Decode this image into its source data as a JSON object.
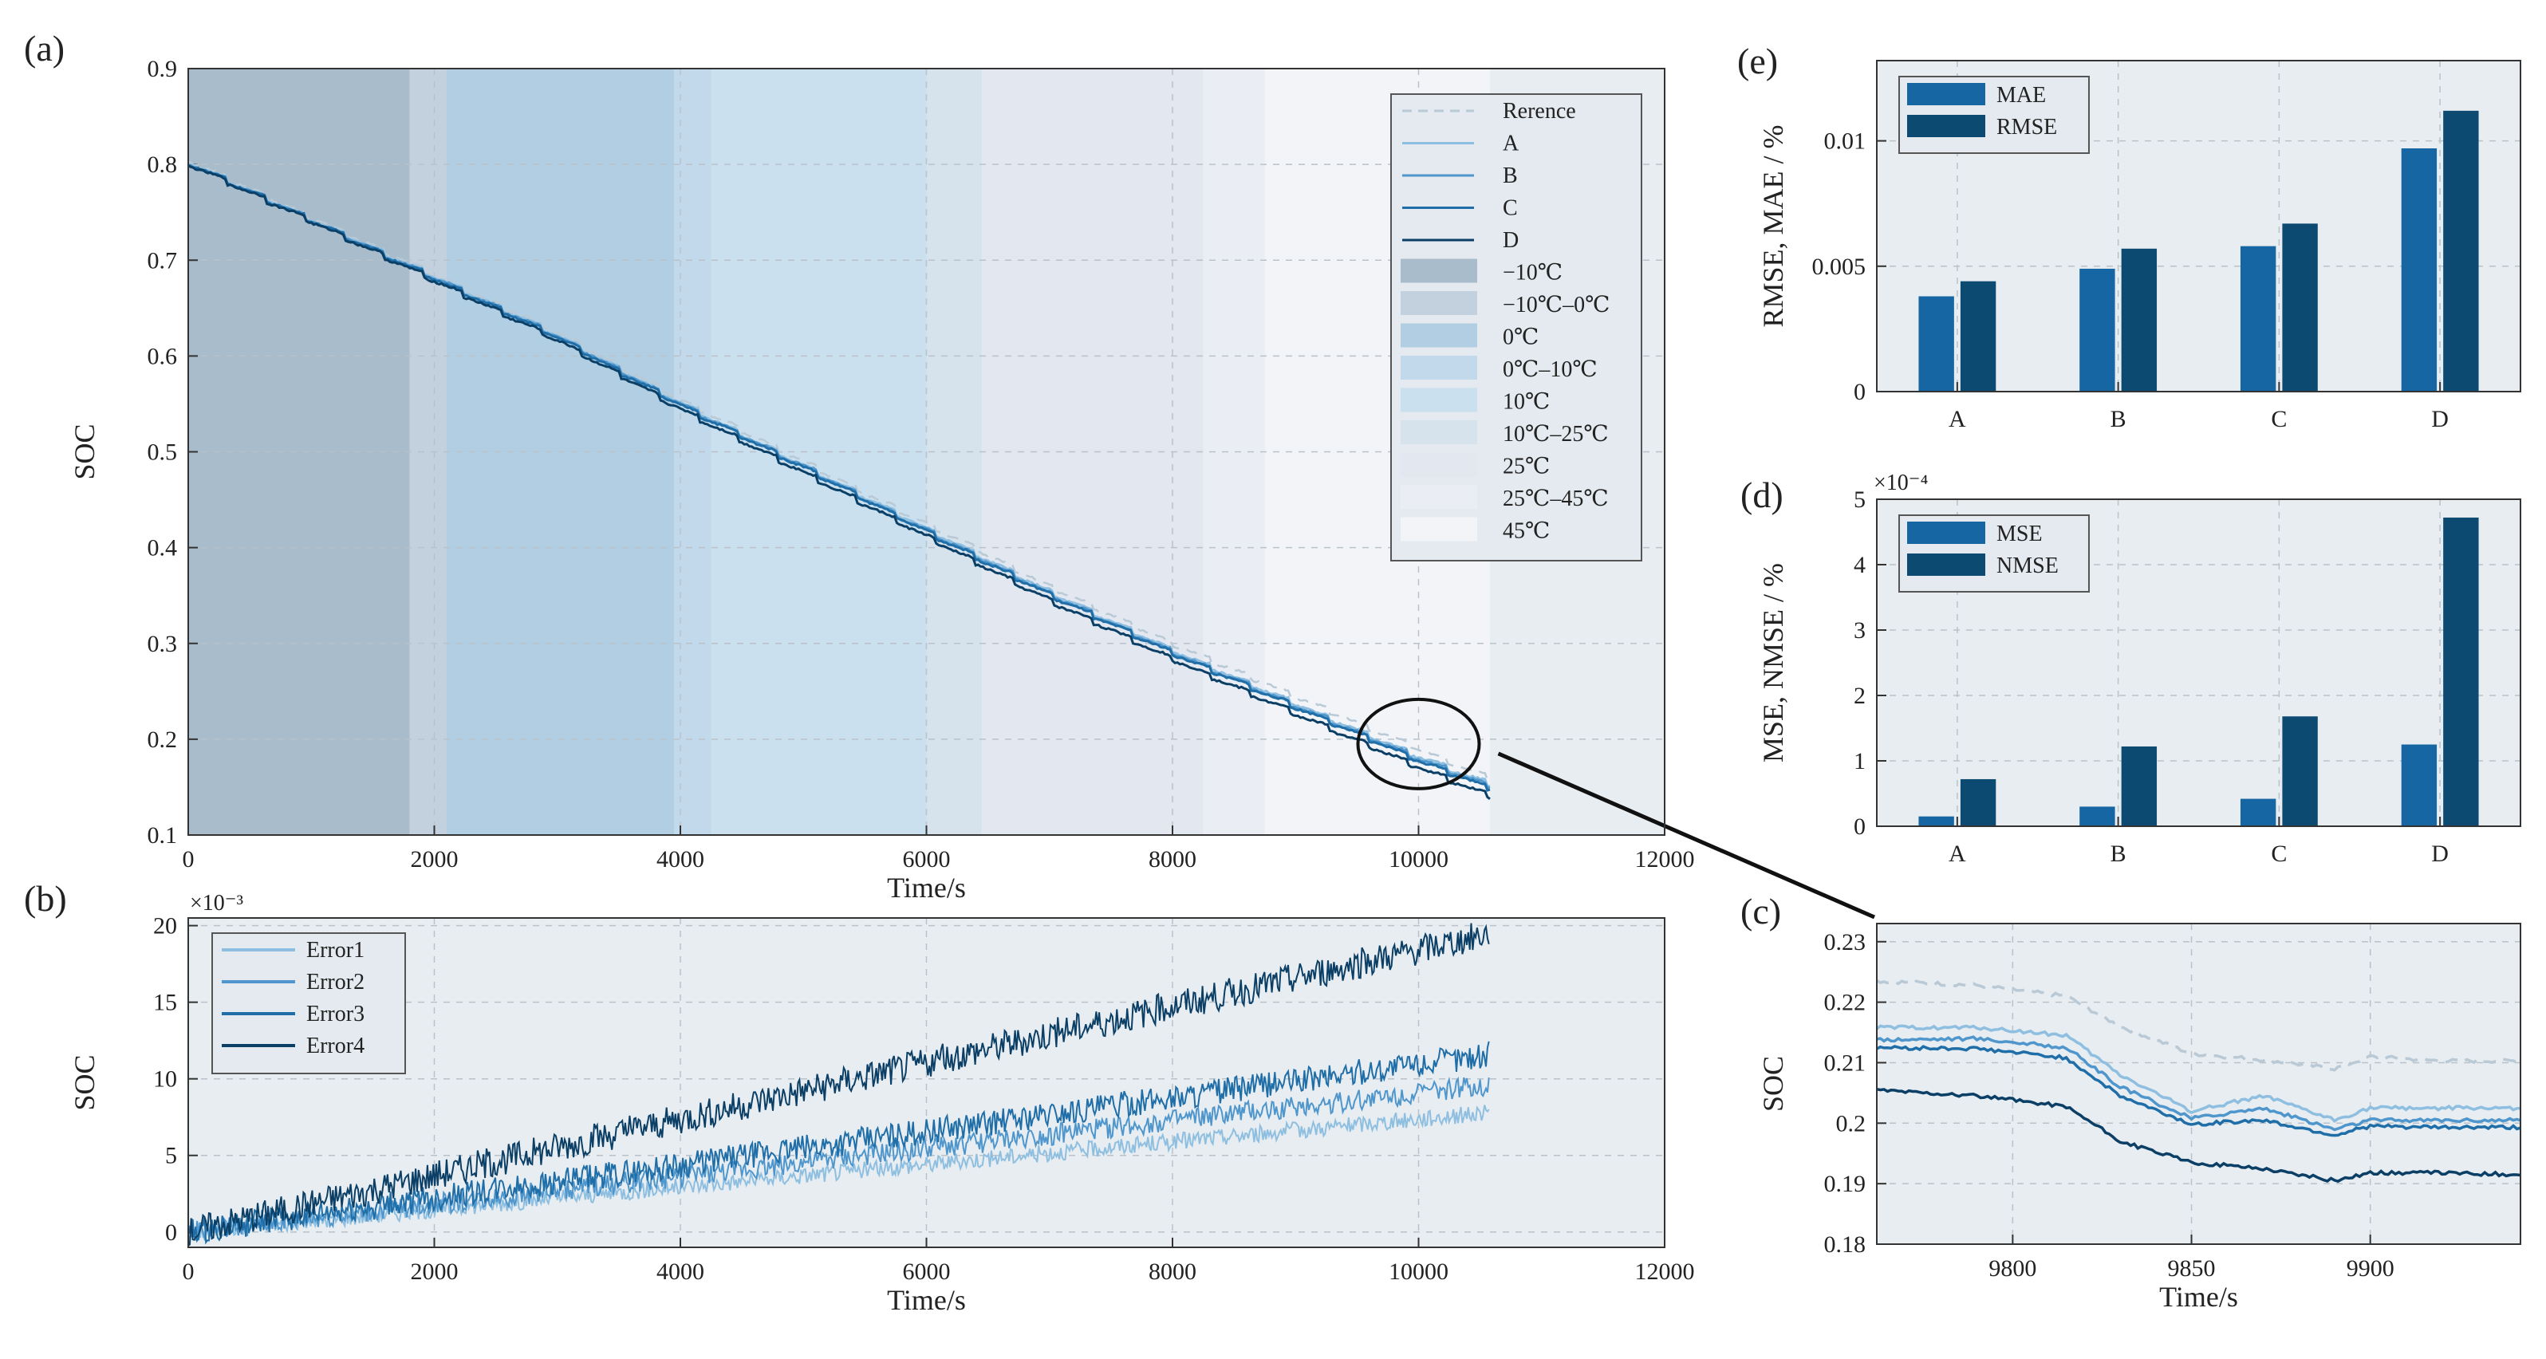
{
  "chart_data": [
    {
      "id": "a",
      "panel_label": "(a)",
      "type": "line",
      "xlabel": "Time/s",
      "ylabel": "SOC",
      "xlim": [
        0,
        12000
      ],
      "ylim": [
        0.1,
        0.9
      ],
      "xticks": [
        "0",
        "2000",
        "4000",
        "6000",
        "8000",
        "10000",
        "12000"
      ],
      "yticks": [
        "0.1",
        "0.2",
        "0.3",
        "0.4",
        "0.5",
        "0.6",
        "0.7",
        "0.8",
        "0.9"
      ],
      "series": [
        {
          "name": "Rerence",
          "style": "dashed",
          "color": "#b9c9d6",
          "x": [
            0,
            1000,
            2000,
            3000,
            4000,
            5000,
            6000,
            7000,
            8000,
            9000,
            10000,
            10580
          ],
          "y": [
            0.805,
            0.745,
            0.685,
            0.625,
            0.555,
            0.49,
            0.425,
            0.36,
            0.3,
            0.245,
            0.19,
            0.16
          ]
        },
        {
          "name": "A",
          "color": "#8fbfe0",
          "x": [
            0,
            1000,
            2000,
            3000,
            4000,
            5000,
            6000,
            7000,
            8000,
            9000,
            10000,
            10580
          ],
          "y": [
            0.803,
            0.743,
            0.683,
            0.622,
            0.551,
            0.486,
            0.42,
            0.354,
            0.293,
            0.237,
            0.182,
            0.153
          ]
        },
        {
          "name": "B",
          "color": "#4f96cc",
          "x": [
            0,
            1000,
            2000,
            3000,
            4000,
            5000,
            6000,
            7000,
            8000,
            9000,
            10000,
            10580
          ],
          "y": [
            0.802,
            0.742,
            0.682,
            0.621,
            0.55,
            0.485,
            0.418,
            0.352,
            0.291,
            0.235,
            0.18,
            0.151
          ]
        },
        {
          "name": "C",
          "color": "#1f6ea8",
          "x": [
            0,
            1000,
            2000,
            3000,
            4000,
            5000,
            6000,
            7000,
            8000,
            9000,
            10000,
            10580
          ],
          "y": [
            0.802,
            0.742,
            0.681,
            0.62,
            0.549,
            0.484,
            0.417,
            0.351,
            0.29,
            0.234,
            0.178,
            0.149
          ]
        },
        {
          "name": "D",
          "color": "#0b3f66",
          "x": [
            0,
            1000,
            2000,
            3000,
            4000,
            5000,
            6000,
            7000,
            8000,
            9000,
            10000,
            10580
          ],
          "y": [
            0.801,
            0.741,
            0.679,
            0.617,
            0.545,
            0.479,
            0.412,
            0.345,
            0.284,
            0.227,
            0.171,
            0.141
          ]
        }
      ],
      "temperature_bands": [
        {
          "label": "−10℃",
          "x0": 0,
          "x1": 1800,
          "color": "#a9bccb"
        },
        {
          "label": "−10℃–0℃",
          "x0": 1800,
          "x1": 2100,
          "color": "#c2d1dd"
        },
        {
          "label": "0℃",
          "x0": 2100,
          "x1": 3950,
          "color": "#b1cee2"
        },
        {
          "label": "0℃–10℃",
          "x0": 3950,
          "x1": 4250,
          "color": "#c1d9ea"
        },
        {
          "label": "10℃",
          "x0": 4250,
          "x1": 6000,
          "color": "#cbe0ee"
        },
        {
          "label": "10℃–25℃",
          "x0": 6000,
          "x1": 6450,
          "color": "#d6e3ed"
        },
        {
          "label": "25℃",
          "x0": 6450,
          "x1": 8250,
          "color": "#e3e7f0"
        },
        {
          "label": "25℃–45℃",
          "x0": 8250,
          "x1": 8750,
          "color": "#eaedf3"
        },
        {
          "label": "45℃",
          "x0": 8750,
          "x1": 10580,
          "color": "#f2f4f7"
        }
      ],
      "legend_position": "top-right"
    },
    {
      "id": "b",
      "panel_label": "(b)",
      "type": "line",
      "xlabel": "Time/s",
      "ylabel": "SOC",
      "exponent": "×10⁻³",
      "xlim": [
        0,
        12000
      ],
      "ylim": [
        -1,
        20.5
      ],
      "xticks": [
        "0",
        "2000",
        "4000",
        "6000",
        "8000",
        "10000",
        "12000"
      ],
      "yticks": [
        "0",
        "5",
        "10",
        "15",
        "20"
      ],
      "series": [
        {
          "name": "Error1",
          "color": "#8fbfe0",
          "x": [
            0,
            10580
          ],
          "y": [
            0,
            7.8
          ]
        },
        {
          "name": "Error2",
          "color": "#4f96cc",
          "x": [
            0,
            10580
          ],
          "y": [
            0,
            9.6
          ]
        },
        {
          "name": "Error3",
          "color": "#1f6ea8",
          "x": [
            0,
            10580
          ],
          "y": [
            0,
            11.6
          ]
        },
        {
          "name": "Error4",
          "color": "#0b3f66",
          "x": [
            0,
            10580
          ],
          "y": [
            0,
            19.5
          ]
        }
      ],
      "legend_position": "top-left"
    },
    {
      "id": "c",
      "panel_label": "(c)",
      "type": "line",
      "xlabel": "Time/s",
      "ylabel": "SOC",
      "xlim": [
        9762,
        9942
      ],
      "ylim": [
        0.18,
        0.233
      ],
      "xticks": [
        "9800",
        "9850",
        "9900"
      ],
      "yticks": [
        "0.18",
        "0.19",
        "0.2",
        "0.21",
        "0.22",
        "0.23"
      ],
      "series": [
        {
          "name": "Rerence",
          "style": "dashed",
          "color": "#b9c9d6",
          "x": [
            9762,
            9790,
            9815,
            9830,
            9850,
            9870,
            9890,
            9900,
            9920,
            9942
          ],
          "y": [
            0.2235,
            0.2228,
            0.221,
            0.216,
            0.2115,
            0.2105,
            0.209,
            0.211,
            0.2103,
            0.2103
          ]
        },
        {
          "name": "A",
          "color": "#8fbfe0",
          "x": [
            9762,
            9790,
            9815,
            9830,
            9850,
            9870,
            9890,
            9900,
            9920,
            9942
          ],
          "y": [
            0.2158,
            0.2158,
            0.2145,
            0.208,
            0.202,
            0.2045,
            0.2005,
            0.2025,
            0.2025,
            0.2025
          ]
        },
        {
          "name": "B",
          "color": "#4f96cc",
          "x": [
            9762,
            9790,
            9815,
            9830,
            9850,
            9870,
            9890,
            9900,
            9920,
            9942
          ],
          "y": [
            0.2138,
            0.214,
            0.2125,
            0.206,
            0.2008,
            0.2025,
            0.199,
            0.2005,
            0.2005,
            0.2005
          ]
        },
        {
          "name": "C",
          "color": "#1f6ea8",
          "x": [
            9762,
            9790,
            9815,
            9830,
            9850,
            9870,
            9890,
            9900,
            9920,
            9942
          ],
          "y": [
            0.2125,
            0.2123,
            0.2108,
            0.2045,
            0.1998,
            0.2005,
            0.198,
            0.1995,
            0.1993,
            0.1993
          ]
        },
        {
          "name": "D",
          "color": "#0b3f66",
          "x": [
            9762,
            9790,
            9815,
            9830,
            9850,
            9870,
            9890,
            9900,
            9920,
            9942
          ],
          "y": [
            0.2055,
            0.2045,
            0.2028,
            0.197,
            0.1935,
            0.1925,
            0.1905,
            0.1918,
            0.1918,
            0.1915
          ]
        }
      ]
    },
    {
      "id": "d",
      "panel_label": "(d)",
      "type": "bar",
      "ylabel": "MSE, NMSE / %",
      "exponent": "×10⁻⁴",
      "categories": [
        "A",
        "B",
        "C",
        "D"
      ],
      "ylim": [
        0,
        5
      ],
      "yticks": [
        "0",
        "1",
        "2",
        "3",
        "4",
        "5"
      ],
      "series": [
        {
          "name": "MSE",
          "color": "#1566a3",
          "values": [
            0.15,
            0.3,
            0.42,
            1.25
          ]
        },
        {
          "name": "NMSE",
          "color": "#0d4a72",
          "values": [
            0.72,
            1.22,
            1.68,
            4.72
          ]
        }
      ],
      "legend_position": "top-left"
    },
    {
      "id": "e",
      "panel_label": "(e)",
      "type": "bar",
      "ylabel": "RMSE, MAE / %",
      "categories": [
        "A",
        "B",
        "C",
        "D"
      ],
      "ylim": [
        0,
        0.0132
      ],
      "yticks": [
        "0",
        "0.005",
        "0.01"
      ],
      "ytick_values": [
        0,
        0.005,
        0.01
      ],
      "series": [
        {
          "name": "MAE",
          "color": "#1566a3",
          "values": [
            0.0038,
            0.0049,
            0.0058,
            0.0097
          ]
        },
        {
          "name": "RMSE",
          "color": "#0d4a72",
          "values": [
            0.0044,
            0.0057,
            0.0067,
            0.0112
          ]
        }
      ],
      "legend_position": "top-left"
    }
  ]
}
